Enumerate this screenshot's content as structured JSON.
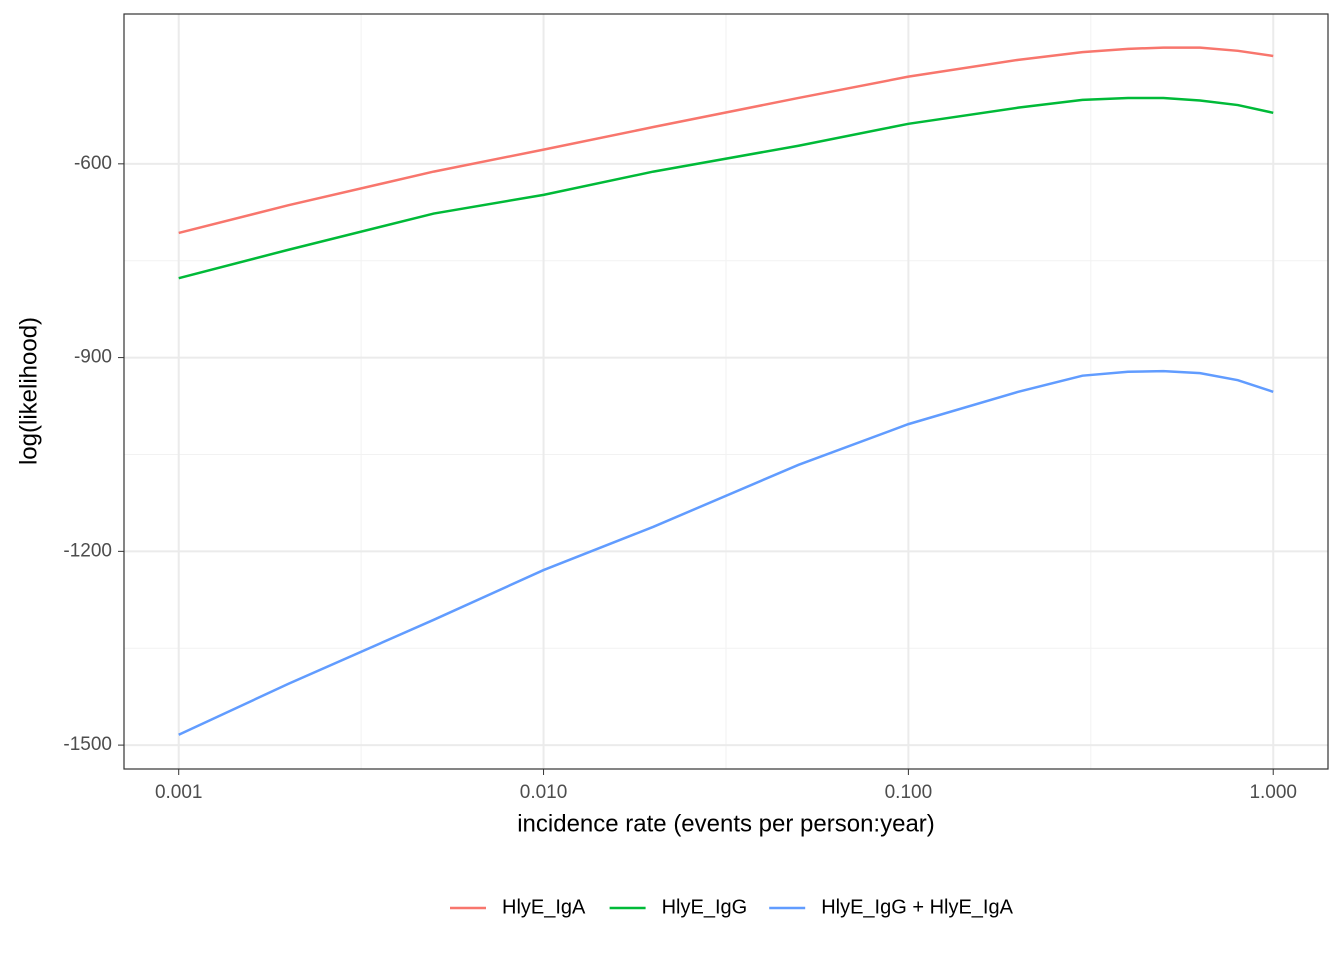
{
  "chart_data": {
    "type": "line",
    "x_label": "incidence rate (events per person:year)",
    "y_label": "log(likelihood)",
    "x": [
      0.001,
      0.002,
      0.005,
      0.01,
      0.02,
      0.05,
      0.1,
      0.2,
      0.3,
      0.4,
      0.5,
      0.63,
      0.8,
      1.0
    ],
    "series": [
      {
        "name": "HlyE_IgA",
        "color": "#f8766d",
        "values": [
          -707,
          -664,
          -612,
          -578,
          -543,
          -498,
          -465,
          -439,
          -427,
          -422,
          -420,
          -420,
          -425,
          -433
        ]
      },
      {
        "name": "HlyE_IgG",
        "color": "#00ba38",
        "values": [
          -777,
          -733,
          -677,
          -648,
          -612,
          -572,
          -538,
          -513,
          -501,
          -498,
          -498,
          -502,
          -509,
          -521
        ]
      },
      {
        "name": "HlyE_IgG + HlyE_IgA",
        "color": "#619cff",
        "values": [
          -1484,
          -1405,
          -1306,
          -1229,
          -1162,
          -1066,
          -1003,
          -953,
          -928,
          -922,
          -921,
          -924,
          -935,
          -953
        ]
      }
    ],
    "xscale": "log",
    "xlim": [
      0.000708,
      1.413
    ],
    "ylim": [
      -1537,
      -368
    ],
    "xticks": [
      {
        "value": 0.001,
        "label": "0.001"
      },
      {
        "value": 0.01,
        "label": "0.010"
      },
      {
        "value": 0.1,
        "label": "0.100"
      },
      {
        "value": 1,
        "label": "1.000"
      }
    ],
    "yticks": [
      -1500,
      -1200,
      -900,
      -600
    ],
    "grid": true,
    "legend_position": "bottom"
  }
}
